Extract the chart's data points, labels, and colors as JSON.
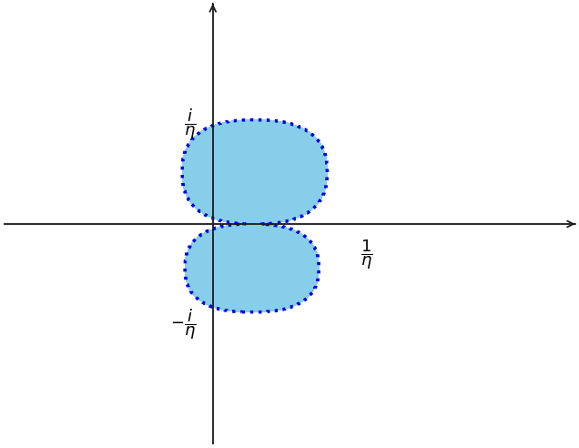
{
  "fill_color": "#87CEEB",
  "fill_alpha": 1.0,
  "border_color": "#0000DD",
  "border_linewidth": 2.5,
  "axis_color": "#1a1a1a",
  "background_color": "#ffffff",
  "one_over_eta": 0.5,
  "xlim": [
    -0.75,
    1.3
  ],
  "ylim": [
    -1.1,
    1.1
  ],
  "figsize": [
    6.36,
    4.92
  ],
  "dpi": 100
}
